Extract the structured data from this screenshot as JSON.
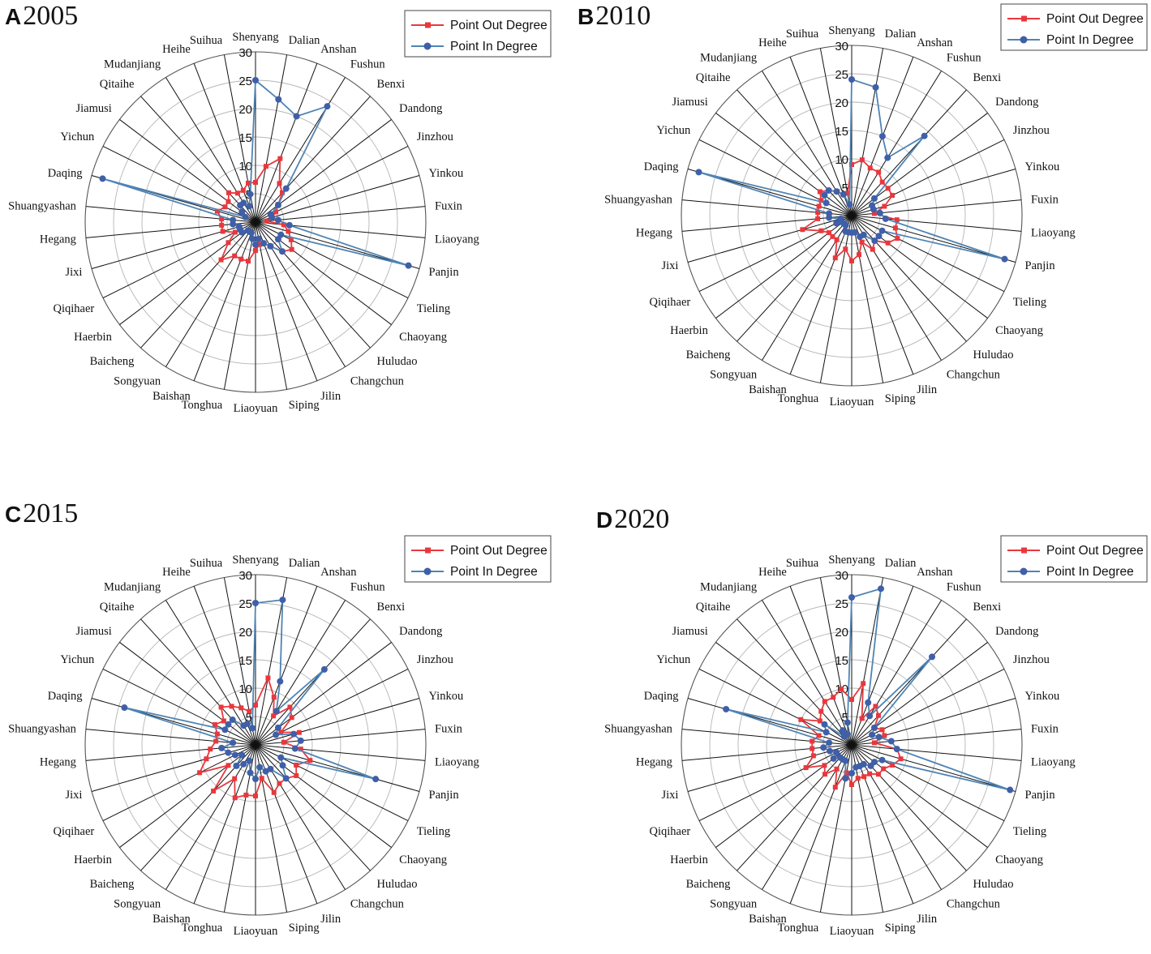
{
  "colors": {
    "out_series": "#e8383d",
    "in_series": "#4f84b4",
    "in_marker": "#3f5fa8",
    "grid_ring": "#b5b5b5",
    "spoke": "#111111"
  },
  "chart_data": [
    {
      "type": "radar",
      "panel_letter": "A",
      "year": "2005",
      "radial_range": [
        0,
        30
      ],
      "radial_ticks": [
        "5",
        "10",
        "15",
        "20",
        "25",
        "30"
      ],
      "legend": [
        "Point Out Degree",
        "Point In  Degree"
      ],
      "categories": [
        "Shenyang",
        "Dalian",
        "Anshan",
        "Fushun",
        "Benxi",
        "Dandong",
        "Jinzhou",
        "Yinkou",
        "Fuxin",
        "Liaoyang",
        "Panjin",
        "Tieling",
        "Chaoyang",
        "Huludao",
        "Changchun",
        "Jilin",
        "Siping",
        "Liaoyuan",
        "Tonghua",
        "Baishan",
        "Songyuan",
        "Baicheng",
        "Haerbin",
        "Qiqihaer",
        "Jixi",
        "Hegang",
        "Shuangyashan",
        "Daqing",
        "Yichun",
        "Jiamusi",
        "Qitaihe",
        "Mudanjiang",
        "Heihe",
        "Suihua"
      ],
      "series": [
        {
          "name": "Point Out Degree",
          "values": [
            7,
            10,
            12,
            8,
            7,
            5,
            4,
            3,
            2,
            5,
            6,
            7,
            8,
            7,
            5,
            4,
            4,
            5,
            7,
            7,
            7,
            9,
            6,
            4,
            6,
            6,
            6,
            7,
            6,
            6,
            7,
            6,
            6,
            7
          ]
        },
        {
          "name": "Point In  Degree",
          "values": [
            25,
            22,
            20,
            24,
            8,
            5,
            3,
            3,
            4,
            6,
            28,
            5,
            5,
            7,
            5,
            4,
            3,
            4,
            3,
            2,
            2,
            2,
            3,
            3,
            3,
            4,
            4,
            28,
            2,
            3,
            4,
            4,
            3,
            5
          ]
        }
      ]
    },
    {
      "type": "radar",
      "panel_letter": "B",
      "year": "2010",
      "radial_range": [
        0,
        30
      ],
      "radial_ticks": [
        "5",
        "10",
        "15",
        "20",
        "25",
        "30"
      ],
      "legend": [
        "Point Out Degree",
        "Point In  Degree"
      ],
      "categories": [
        "Shenyang",
        "Dalian",
        "Anshan",
        "Fushun",
        "Benxi",
        "Dandong",
        "Jinzhou",
        "Yinkou",
        "Fuxin",
        "Liaoyang",
        "Panjin",
        "Tieling",
        "Chaoyang",
        "Huludao",
        "Changchun",
        "Jilin",
        "Siping",
        "Liaoyuan",
        "Tonghua",
        "Baishan",
        "Songyuan",
        "Baicheng",
        "Haerbin",
        "Qiqihaer",
        "Jixi",
        "Hegang",
        "Shuangyashan",
        "Daqing",
        "Yichun",
        "Jiamusi",
        "Qitaihe",
        "Mudanjiang",
        "Heihe",
        "Suihua"
      ],
      "series": [
        {
          "name": "Point Out Degree",
          "values": [
            9,
            10,
            9,
            9,
            8,
            8,
            8,
            6,
            4,
            8,
            8,
            9,
            8,
            6,
            7,
            5,
            7,
            8,
            6,
            8,
            5,
            5,
            5,
            6,
            9,
            6,
            6,
            6,
            6,
            7,
            6,
            5,
            4,
            4
          ]
        },
        {
          "name": "Point In  Degree",
          "values": [
            24,
            23,
            15,
            12,
            19,
            5,
            4,
            4,
            5,
            6,
            28,
            6,
            6,
            6,
            4,
            4,
            3,
            3,
            3,
            3,
            2,
            2,
            2,
            3,
            2,
            4,
            4,
            28,
            5,
            6,
            6,
            5,
            4,
            2
          ]
        }
      ]
    },
    {
      "type": "radar",
      "panel_letter": "C",
      "year": "2015",
      "radial_range": [
        0,
        30
      ],
      "radial_ticks": [
        "5",
        "10",
        "15",
        "20",
        "25",
        "30"
      ],
      "legend": [
        "Point Out Degree",
        "Point In  Degree"
      ],
      "categories": [
        "Shenyang",
        "Dalian",
        "Anshan",
        "Fushun",
        "Benxi",
        "Dandong",
        "Jinzhou",
        "Yinkou",
        "Fuxin",
        "Liaoyang",
        "Panjin",
        "Tieling",
        "Chaoyang",
        "Huludao",
        "Changchun",
        "Jilin",
        "Siping",
        "Liaoyuan",
        "Tonghua",
        "Baishan",
        "Songyuan",
        "Baicheng",
        "Haerbin",
        "Qiqihaer",
        "Jixi",
        "Hegang",
        "Shuangyashan",
        "Daqing",
        "Yichun",
        "Jiamusi",
        "Qitaihe",
        "Mudanjiang",
        "Heihe",
        "Suihua"
      ],
      "series": [
        {
          "name": "Point Out Degree",
          "values": [
            7,
            12,
            9,
            6,
            9,
            8,
            5,
            8,
            5,
            8,
            10,
            8,
            9,
            8,
            8,
            9,
            6,
            9,
            9,
            10,
            7,
            11,
            6,
            11,
            9,
            8,
            7,
            7,
            8,
            7,
            9,
            8,
            7,
            6
          ]
        },
        {
          "name": "Point In  Degree",
          "values": [
            25,
            26,
            12,
            7,
            18,
            5,
            4,
            7,
            8,
            7,
            22,
            5,
            6,
            8,
            5,
            5,
            4,
            6,
            5,
            3,
            4,
            5,
            3,
            4,
            5,
            6,
            4,
            24,
            6,
            6,
            6,
            4,
            4,
            3
          ]
        }
      ]
    },
    {
      "type": "radar",
      "panel_letter": "D",
      "year": "2020",
      "radial_range": [
        0,
        30
      ],
      "radial_ticks": [
        "5",
        "10",
        "15",
        "20",
        "25",
        "30"
      ],
      "legend": [
        "Point Out Degree",
        "Point In  Degree"
      ],
      "categories": [
        "Shenyang",
        "Dalian",
        "Anshan",
        "Fushun",
        "Benxi",
        "Dandong",
        "Jinzhou",
        "Yinkou",
        "Fuxin",
        "Liaoyang",
        "Panjin",
        "Tieling",
        "Chaoyang",
        "Huludao",
        "Changchun",
        "Jilin",
        "Siping",
        "Liaoyuan",
        "Tonghua",
        "Baishan",
        "Songyuan",
        "Baicheng",
        "Haerbin",
        "Qiqihaer",
        "Jixi",
        "Hegang",
        "Shuangyashan",
        "Daqing",
        "Yichun",
        "Jiamusi",
        "Qitaihe",
        "Mudanjiang",
        "Heihe",
        "Suihua"
      ],
      "series": [
        {
          "name": "Point Out Degree",
          "values": [
            8,
            11,
            5,
            8,
            7,
            5,
            6,
            6,
            4,
            8,
            9,
            8,
            7,
            7,
            6,
            6,
            6,
            7,
            5,
            8,
            5,
            7,
            6,
            9,
            7,
            7,
            7,
            6,
            10,
            7,
            8,
            9,
            9,
            10
          ]
        },
        {
          "name": "Point In  Degree",
          "values": [
            26,
            28,
            8,
            6,
            21,
            5,
            4,
            5,
            7,
            8,
            29,
            6,
            5,
            5,
            4,
            4,
            4,
            5,
            6,
            3,
            3,
            3,
            4,
            3,
            4,
            5,
            4,
            23,
            5,
            6,
            2,
            3,
            2,
            4
          ]
        }
      ]
    }
  ]
}
